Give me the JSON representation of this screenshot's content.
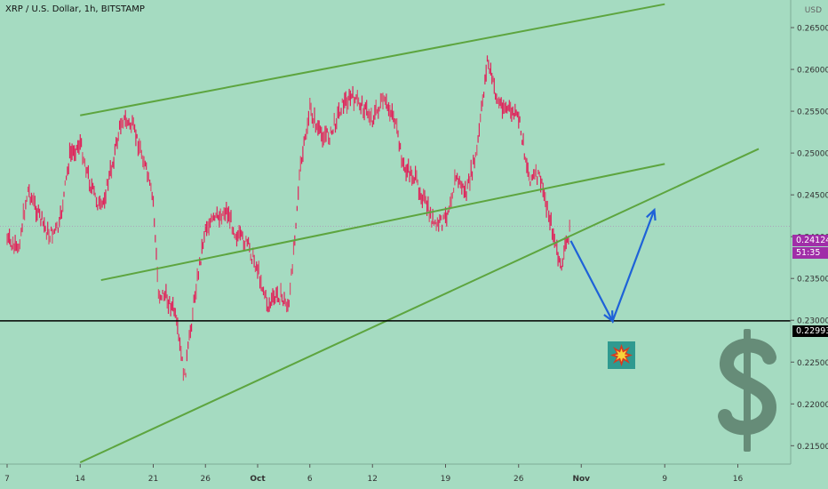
{
  "header": {
    "symbol_title": "XRP / U.S. Dollar, 1h, BITSTAMP",
    "currency": "USD"
  },
  "price_tags": {
    "last_price": "0.24124",
    "countdown": "51:35",
    "support_level": "0.22993"
  },
  "icons": {
    "explosion": "explosion-icon",
    "dollar": "dollar-sign-icon"
  },
  "colors": {
    "background": "#a5dbc1",
    "candles": "#e0225a",
    "trendlines": "#5da53f",
    "projection_arrow": "#1e62d8",
    "support_line": "#000000",
    "last_price_tag": "#a02ea8",
    "dollar_sign": "#668c78"
  },
  "chart_data": {
    "type": "line",
    "timeframe": "1h",
    "x_ticks": [
      "7",
      "14",
      "21",
      "26",
      "Oct",
      "6",
      "12",
      "19",
      "26",
      "Nov",
      "9",
      "16"
    ],
    "y_ticks": [
      "0.21500",
      "0.22000",
      "0.22500",
      "0.23000",
      "0.23500",
      "0.24000",
      "0.24500",
      "0.25000",
      "0.25500",
      "0.26000",
      "0.26500"
    ],
    "ylim": [
      0.2128,
      0.2683
    ],
    "price_series": {
      "name": "XRP/USD",
      "points": [
        [
          "Sep 7",
          0.2395
        ],
        [
          "Sep 8",
          0.238
        ],
        [
          "Sep 9",
          0.2455
        ],
        [
          "Sep 10",
          0.2425
        ],
        [
          "Sep 11",
          0.24
        ],
        [
          "Sep 12",
          0.241
        ],
        [
          "Sep 13",
          0.2495
        ],
        [
          "Sep 14",
          0.251
        ],
        [
          "Sep 15",
          0.246
        ],
        [
          "Sep 16",
          0.243
        ],
        [
          "Sep 17",
          0.248
        ],
        [
          "Sep 18",
          0.254
        ],
        [
          "Sep 19",
          0.253
        ],
        [
          "Sep 20",
          0.2495
        ],
        [
          "Sep 21",
          0.244
        ],
        [
          "Sep 21.5",
          0.233
        ],
        [
          "Sep 22",
          0.233
        ],
        [
          "Sep 23",
          0.231
        ],
        [
          "Sep 24",
          0.223
        ],
        [
          "Sep 25",
          0.233
        ],
        [
          "Sep 26",
          0.241
        ],
        [
          "Sep 27",
          0.242
        ],
        [
          "Sep 28",
          0.243
        ],
        [
          "Sep 29",
          0.24
        ],
        [
          "Sep 30",
          0.239
        ],
        [
          "Oct 1",
          0.236
        ],
        [
          "Oct 2",
          0.2315
        ],
        [
          "Oct 3",
          0.233
        ],
        [
          "Oct 4",
          0.2315
        ],
        [
          "Oct 5",
          0.247
        ],
        [
          "Oct 6",
          0.255
        ],
        [
          "Oct 7",
          0.252
        ],
        [
          "Oct 8",
          0.252
        ],
        [
          "Oct 9",
          0.2555
        ],
        [
          "Oct 10",
          0.2565
        ],
        [
          "Oct 11",
          0.2555
        ],
        [
          "Oct 12",
          0.254
        ],
        [
          "Oct 13",
          0.256
        ],
        [
          "Oct 14",
          0.2545
        ],
        [
          "Oct 15",
          0.248
        ],
        [
          "Oct 16",
          0.247
        ],
        [
          "Oct 17",
          0.244
        ],
        [
          "Oct 18",
          0.241
        ],
        [
          "Oct 19",
          0.242
        ],
        [
          "Oct 20",
          0.247
        ],
        [
          "Oct 21",
          0.245
        ],
        [
          "Oct 22",
          0.25
        ],
        [
          "Oct 23",
          0.261
        ],
        [
          "Oct 24",
          0.256
        ],
        [
          "Oct 25",
          0.255
        ],
        [
          "Oct 26",
          0.254
        ],
        [
          "Oct 27",
          0.247
        ],
        [
          "Oct 28",
          0.247
        ],
        [
          "Oct 29",
          0.242
        ],
        [
          "Oct 30",
          0.236
        ],
        [
          "Oct 31",
          0.2412
        ]
      ]
    },
    "annotations": {
      "upper_channel_line": [
        [
          "Sep 14",
          0.2545
        ],
        [
          "Nov 9",
          0.2678
        ]
      ],
      "mid_channel_line": [
        [
          "Sep 16",
          0.2348
        ],
        [
          "Nov 9",
          0.2487
        ]
      ],
      "lower_trend_line": [
        [
          "Sep 14",
          0.213
        ],
        [
          "Nov 18",
          0.2505
        ]
      ],
      "support_line": 0.22993,
      "projection_path": [
        [
          "Oct 31",
          0.2395
        ],
        [
          "Nov 4",
          0.2299
        ],
        [
          "Nov 8",
          0.2432
        ]
      ]
    }
  }
}
